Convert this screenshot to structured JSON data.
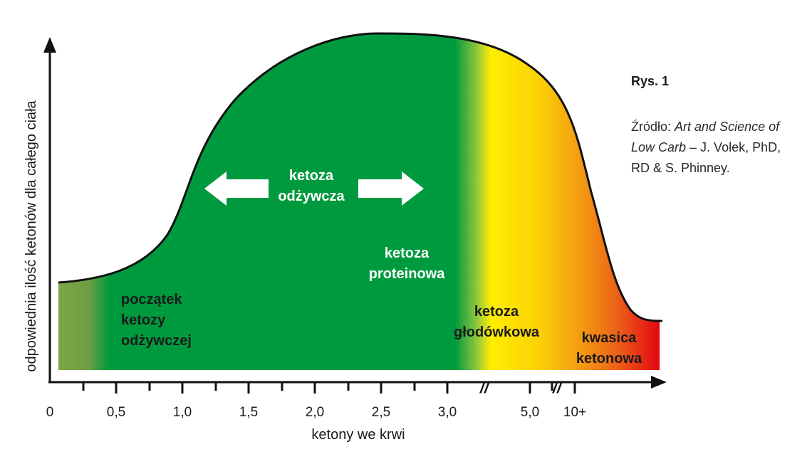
{
  "chart_data": {
    "type": "area",
    "xlabel": "ketony we krwi",
    "ylabel": "odpowiednia ilość ketonów dla całego ciała",
    "x_ticks": [
      "0",
      "0,5",
      "1,0",
      "1,5",
      "2,0",
      "2,5",
      "3,0",
      "5,0",
      "10+"
    ],
    "axis_breaks": [
      "//",
      "//"
    ],
    "zones": [
      {
        "label": "początek\nketozy\nodżywczej",
        "color": "#7ea543"
      },
      {
        "label": "ketoza\nodżywcza",
        "color": "#009a3e"
      },
      {
        "label": "ketoza\nproteinowa",
        "color": "#009a3e"
      },
      {
        "label": "ketoza\ngłodówkowa",
        "color": "#ffed00"
      },
      {
        "label": "kwasica\nketonowa",
        "color": "#e30613"
      }
    ],
    "arrows": "double-headed"
  },
  "caption": {
    "figure": "Rys. 1",
    "source_prefix": "Źródło: ",
    "source_title": "Art and Science of Low Carb",
    "source_rest": " – J. Volek, PhD, RD & S. Phinney."
  }
}
